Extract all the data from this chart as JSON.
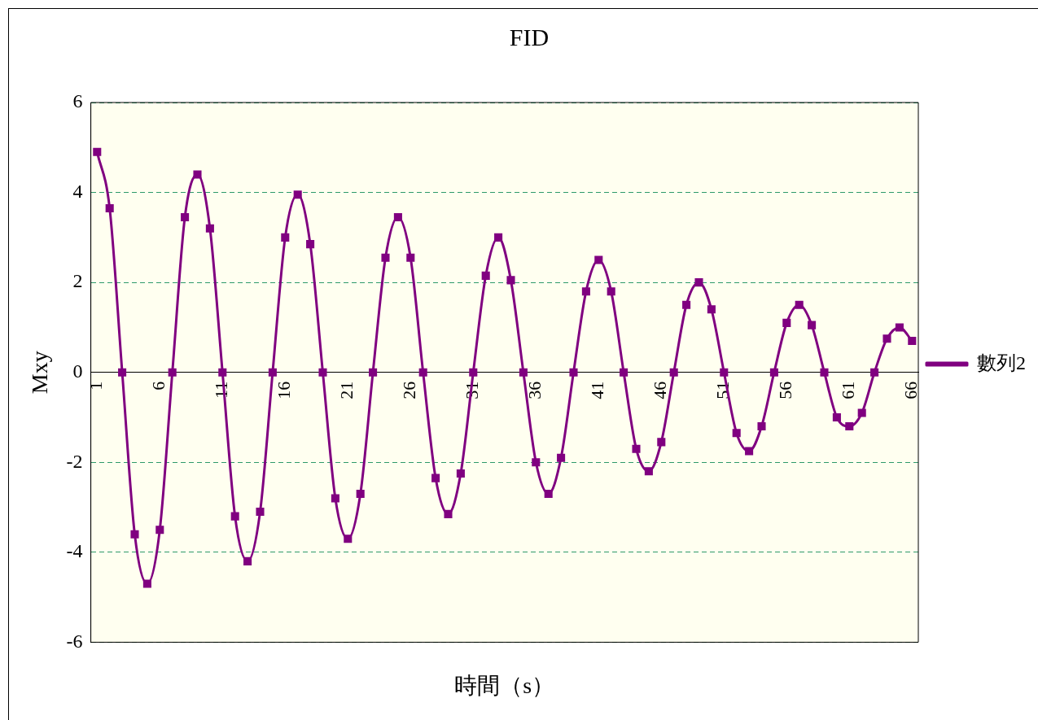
{
  "chart_data": {
    "type": "line",
    "title": "FID",
    "xlabel": "時間（s）",
    "ylabel": "Mxy",
    "categories": [
      "1",
      null,
      null,
      null,
      null,
      "6",
      null,
      null,
      null,
      null,
      "11",
      null,
      null,
      null,
      null,
      "16",
      null,
      null,
      null,
      null,
      "21",
      null,
      null,
      null,
      null,
      "26",
      null,
      null,
      null,
      null,
      "31",
      null,
      null,
      null,
      null,
      "36",
      null,
      null,
      null,
      null,
      "41",
      null,
      null,
      null,
      null,
      "46",
      null,
      null,
      null,
      null,
      "51",
      null,
      null,
      null,
      null,
      "56",
      null,
      null,
      null,
      null,
      "61",
      null,
      null,
      null,
      null,
      "66"
    ],
    "series": [
      {
        "name": "數列2",
        "color": "#800080",
        "values": [
          4.9,
          3.65,
          0,
          -3.6,
          -4.7,
          -3.5,
          0,
          3.45,
          4.4,
          3.2,
          0,
          -3.2,
          -4.2,
          -3.1,
          0,
          3.0,
          3.95,
          2.85,
          0,
          -2.8,
          -3.7,
          -2.7,
          0,
          2.55,
          3.45,
          2.55,
          0,
          -2.35,
          -3.15,
          -2.25,
          0,
          2.15,
          3.0,
          2.05,
          0,
          -2.0,
          -2.7,
          -1.9,
          0,
          1.8,
          2.5,
          1.8,
          0,
          -1.7,
          -2.2,
          -1.55,
          0,
          1.5,
          2.0,
          1.4,
          0,
          -1.35,
          -1.75,
          -1.2,
          0,
          1.1,
          1.5,
          1.05,
          0,
          -1.0,
          -1.2,
          -0.9,
          0,
          0.75,
          1.0,
          0.7
        ]
      }
    ],
    "ylim": [
      -6,
      6
    ],
    "yticks": [
      -6,
      -4,
      -2,
      0,
      2,
      4,
      6
    ],
    "grid": "y",
    "legend": "right",
    "marker": "square",
    "line_style": "solid"
  }
}
